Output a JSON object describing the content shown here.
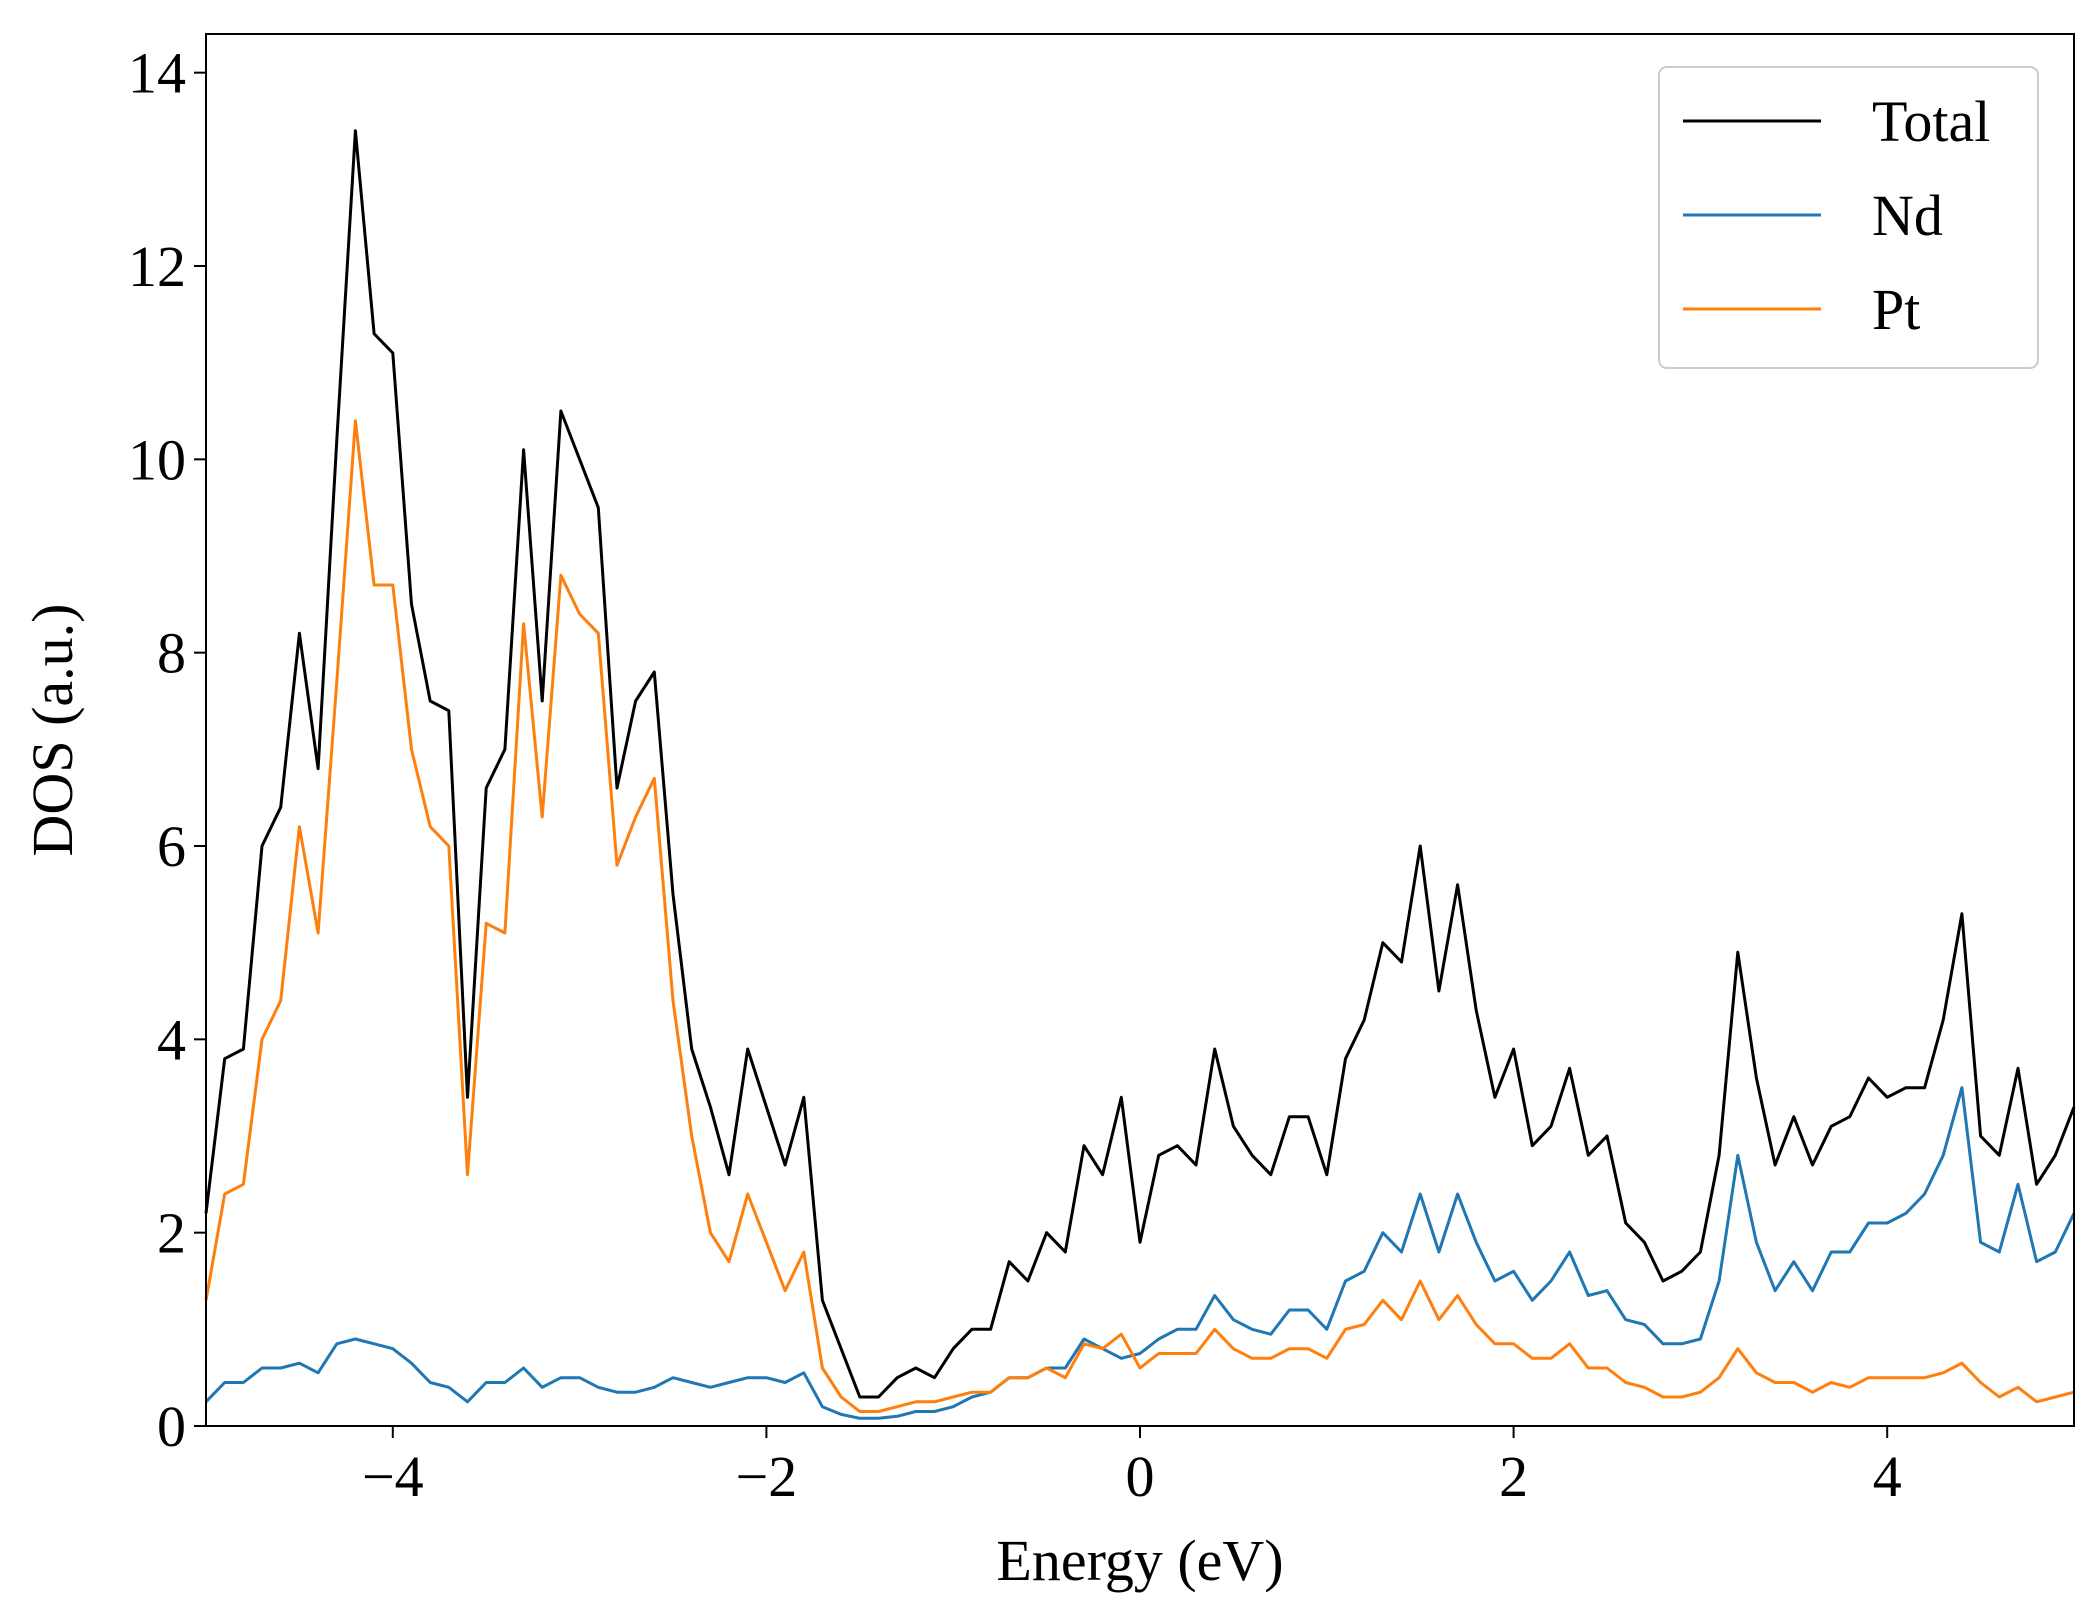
{
  "chart_data": {
    "type": "line",
    "xlabel": "Energy (eV)",
    "ylabel": "DOS (a.u.)",
    "xlim": [
      -5,
      5
    ],
    "ylim": [
      0,
      14.4
    ],
    "xticks": [
      {
        "value": -4,
        "label": "−4"
      },
      {
        "value": -2,
        "label": "−2"
      },
      0,
      2,
      4
    ],
    "yticks": [
      0,
      2,
      4,
      6,
      8,
      10,
      12,
      14
    ],
    "legend": "upper right",
    "grid": false,
    "x": [
      -5.0,
      -4.9,
      -4.8,
      -4.7,
      -4.6,
      -4.5,
      -4.4,
      -4.3,
      -4.2,
      -4.1,
      -4.0,
      -3.9,
      -3.8,
      -3.7,
      -3.6,
      -3.5,
      -3.4,
      -3.3,
      -3.2,
      -3.1,
      -3.0,
      -2.9,
      -2.8,
      -2.7,
      -2.6,
      -2.5,
      -2.4,
      -2.3,
      -2.2,
      -2.1,
      -2.0,
      -1.9,
      -1.8,
      -1.7,
      -1.6,
      -1.5,
      -1.4,
      -1.3,
      -1.2,
      -1.1,
      -1.0,
      -0.9,
      -0.8,
      -0.7,
      -0.6,
      -0.5,
      -0.4,
      -0.3,
      -0.2,
      -0.1,
      0.0,
      0.1,
      0.2,
      0.3,
      0.4,
      0.5,
      0.6,
      0.7,
      0.8,
      0.9,
      1.0,
      1.1,
      1.2,
      1.3,
      1.4,
      1.5,
      1.6,
      1.7,
      1.8,
      1.9,
      2.0,
      2.1,
      2.2,
      2.3,
      2.4,
      2.5,
      2.6,
      2.7,
      2.8,
      2.9,
      3.0,
      3.1,
      3.2,
      3.3,
      3.4,
      3.5,
      3.6,
      3.7,
      3.8,
      3.9,
      4.0,
      4.1,
      4.2,
      4.3,
      4.4,
      4.5,
      4.6,
      4.7,
      4.8,
      4.9,
      5.0
    ],
    "series": [
      {
        "name": "Total",
        "color": "#000000",
        "values": [
          2.2,
          3.8,
          3.9,
          6.0,
          6.4,
          8.2,
          6.8,
          10.2,
          13.4,
          11.3,
          11.1,
          8.5,
          7.5,
          7.4,
          3.4,
          6.6,
          7.0,
          10.1,
          7.5,
          10.5,
          10.0,
          9.5,
          6.6,
          7.5,
          7.8,
          5.5,
          3.9,
          3.3,
          2.6,
          3.9,
          3.3,
          2.7,
          3.4,
          1.3,
          0.8,
          0.3,
          0.3,
          0.5,
          0.6,
          0.5,
          0.8,
          1.0,
          1.0,
          1.7,
          1.5,
          2.0,
          1.8,
          2.9,
          2.6,
          3.4,
          1.9,
          2.8,
          2.9,
          2.7,
          3.9,
          3.1,
          2.8,
          2.6,
          3.2,
          3.2,
          2.6,
          3.8,
          4.2,
          5.0,
          4.8,
          6.0,
          4.5,
          5.6,
          4.3,
          3.4,
          3.9,
          2.9,
          3.1,
          3.7,
          2.8,
          3.0,
          2.1,
          1.9,
          1.5,
          1.6,
          1.8,
          2.8,
          4.9,
          3.6,
          2.7,
          3.2,
          2.7,
          3.1,
          3.2,
          3.6,
          3.4,
          3.5,
          3.5,
          4.2,
          5.3,
          3.0,
          2.8,
          3.7,
          2.5,
          2.8,
          3.3
        ]
      },
      {
        "name": "Nd",
        "color": "#1f77b4",
        "values": [
          0.25,
          0.45,
          0.45,
          0.6,
          0.6,
          0.65,
          0.55,
          0.85,
          0.9,
          0.85,
          0.8,
          0.65,
          0.45,
          0.4,
          0.25,
          0.45,
          0.45,
          0.6,
          0.4,
          0.5,
          0.5,
          0.4,
          0.35,
          0.35,
          0.4,
          0.5,
          0.45,
          0.4,
          0.45,
          0.5,
          0.5,
          0.45,
          0.55,
          0.2,
          0.12,
          0.08,
          0.08,
          0.1,
          0.15,
          0.15,
          0.2,
          0.3,
          0.35,
          0.5,
          0.5,
          0.6,
          0.6,
          0.9,
          0.8,
          0.7,
          0.75,
          0.9,
          1.0,
          1.0,
          1.35,
          1.1,
          1.0,
          0.95,
          1.2,
          1.2,
          1.0,
          1.5,
          1.6,
          2.0,
          1.8,
          2.4,
          1.8,
          2.4,
          1.9,
          1.5,
          1.6,
          1.3,
          1.5,
          1.8,
          1.35,
          1.4,
          1.1,
          1.05,
          0.85,
          0.85,
          0.9,
          1.5,
          2.8,
          1.9,
          1.4,
          1.7,
          1.4,
          1.8,
          1.8,
          2.1,
          2.1,
          2.2,
          2.4,
          2.8,
          3.5,
          1.9,
          1.8,
          2.5,
          1.7,
          1.8,
          2.2
        ]
      },
      {
        "name": "Pt",
        "color": "#ff7f0e",
        "values": [
          1.3,
          2.4,
          2.5,
          4.0,
          4.4,
          6.2,
          5.1,
          7.7,
          10.4,
          8.7,
          8.7,
          7.0,
          6.2,
          6.0,
          2.6,
          5.2,
          5.1,
          8.3,
          6.3,
          8.8,
          8.4,
          8.2,
          5.8,
          6.3,
          6.7,
          4.4,
          3.0,
          2.0,
          1.7,
          2.4,
          1.9,
          1.4,
          1.8,
          0.6,
          0.3,
          0.15,
          0.15,
          0.2,
          0.25,
          0.25,
          0.3,
          0.35,
          0.35,
          0.5,
          0.5,
          0.6,
          0.5,
          0.85,
          0.8,
          0.95,
          0.6,
          0.75,
          0.75,
          0.75,
          1.0,
          0.8,
          0.7,
          0.7,
          0.8,
          0.8,
          0.7,
          1.0,
          1.05,
          1.3,
          1.1,
          1.5,
          1.1,
          1.35,
          1.05,
          0.85,
          0.85,
          0.7,
          0.7,
          0.85,
          0.6,
          0.6,
          0.45,
          0.4,
          0.3,
          0.3,
          0.35,
          0.5,
          0.8,
          0.55,
          0.45,
          0.45,
          0.35,
          0.45,
          0.4,
          0.5,
          0.5,
          0.5,
          0.5,
          0.55,
          0.65,
          0.45,
          0.3,
          0.4,
          0.25,
          0.3,
          0.35
        ]
      }
    ]
  }
}
